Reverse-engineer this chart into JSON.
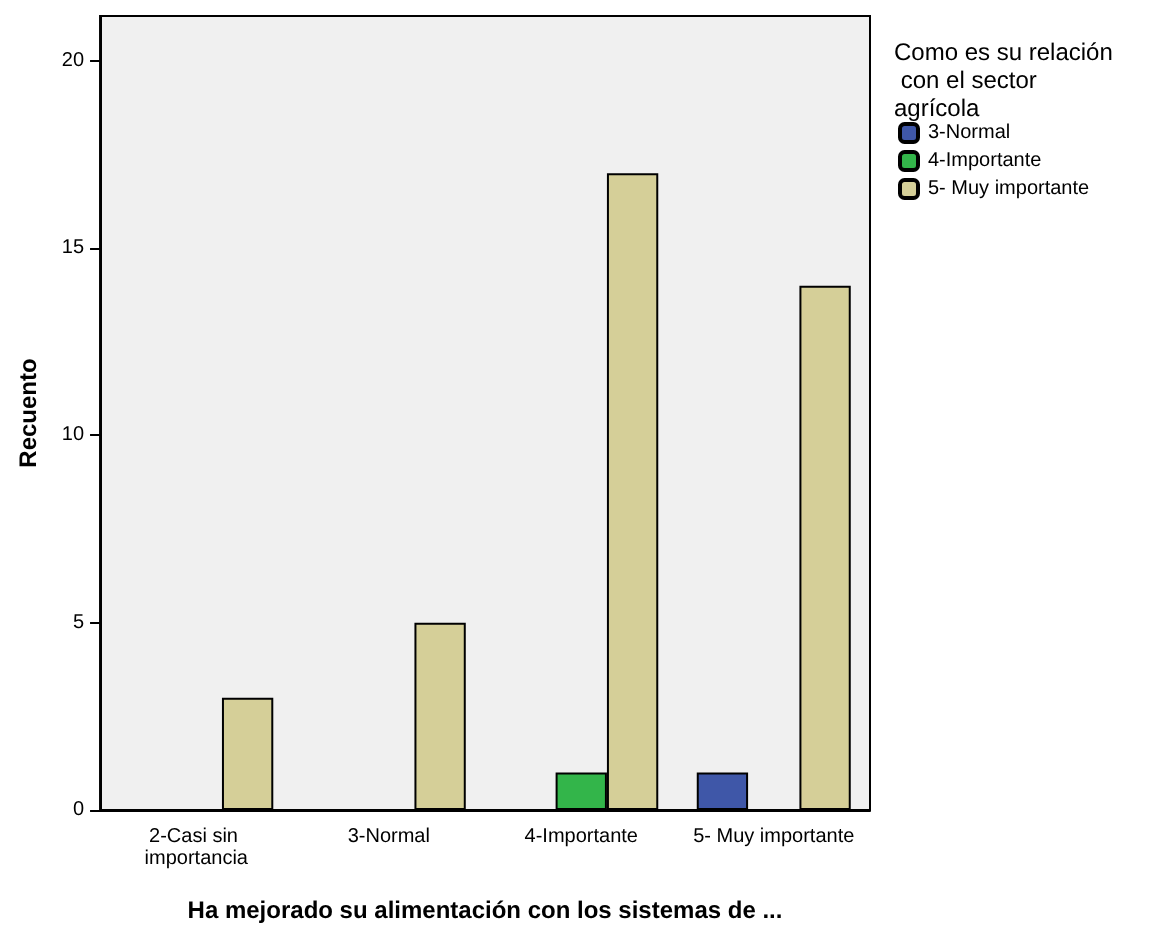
{
  "chart_data": {
    "type": "bar",
    "xlabel": "Ha mejorado su alimentación con los sistemas de ...",
    "ylabel": "Recuento",
    "legend_title": "Como es su relación con el sector agrícola",
    "categories": [
      "2-Casi sin importancia",
      "3-Normal",
      "4-Importante",
      "5- Muy importante"
    ],
    "series": [
      {
        "name": "3-Normal",
        "color": "#3f57a8",
        "values": [
          null,
          null,
          null,
          1
        ]
      },
      {
        "name": "4-Importante",
        "color": "#33b54a",
        "values": [
          null,
          null,
          1,
          null
        ]
      },
      {
        "name": "5- Muy importante",
        "color": "#d5cf98",
        "values": [
          3,
          5,
          17,
          14
        ]
      }
    ],
    "ylim": [
      0,
      21.2
    ],
    "yticks": [
      0,
      5,
      10,
      15,
      20
    ],
    "grid": false,
    "legend": "top right"
  }
}
